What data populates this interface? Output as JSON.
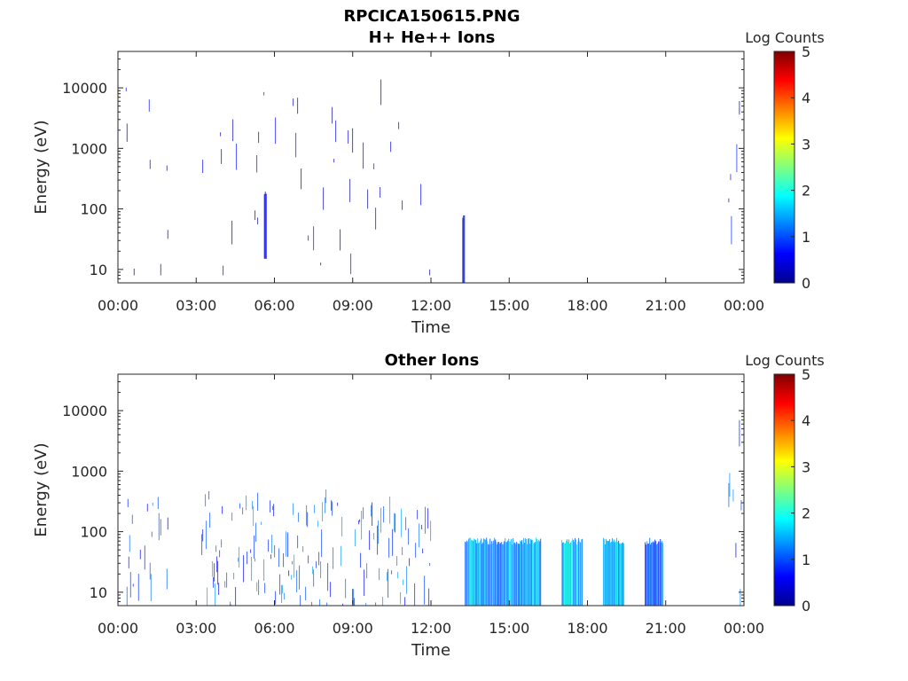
{
  "figure_title": "RPCICA150615.PNG",
  "chart_data": [
    {
      "type": "heatmap",
      "title": "H+ He++ Ions",
      "xlabel": "Time",
      "ylabel": "Energy (eV)",
      "x_tick_labels": [
        "00:00",
        "03:00",
        "06:00",
        "09:00",
        "12:00",
        "15:00",
        "18:00",
        "21:00",
        "00:00"
      ],
      "x_range_hours": [
        0,
        24
      ],
      "y_scale": "log",
      "y_range_eV": [
        6,
        40000
      ],
      "y_tick_values": [
        10,
        100,
        1000,
        10000
      ],
      "y_tick_labels": [
        "10",
        "100",
        "1000",
        "10000"
      ],
      "colorbar": {
        "label": "Log Counts",
        "range": [
          0,
          5
        ],
        "tick_labels": [
          "0",
          "1",
          "2",
          "3",
          "4",
          "5"
        ],
        "colormap": "jet"
      },
      "activity": [
        {
          "t_start_h": 0.3,
          "t_end_h": 1.9,
          "e_low_eV": 8,
          "e_high_eV": 15000,
          "density": 0.15,
          "level": 0.3
        },
        {
          "t_start_h": 3.2,
          "t_end_h": 12.0,
          "e_low_eV": 8,
          "e_high_eV": 15000,
          "density": 0.15,
          "level": 0.3
        },
        {
          "t_start_h": 5.6,
          "t_end_h": 5.7,
          "e_low_eV": 15,
          "e_high_eV": 200,
          "density": 1.0,
          "level": 0.8
        },
        {
          "t_start_h": 13.2,
          "t_end_h": 13.3,
          "e_low_eV": 6,
          "e_high_eV": 80,
          "density": 1.0,
          "level": 0.7
        },
        {
          "t_start_h": 23.4,
          "t_end_h": 23.9,
          "e_low_eV": 10,
          "e_high_eV": 8000,
          "density": 0.25,
          "level": 0.4
        }
      ]
    },
    {
      "type": "heatmap",
      "title": "Other Ions",
      "xlabel": "Time",
      "ylabel": "Energy (eV)",
      "x_tick_labels": [
        "00:00",
        "03:00",
        "06:00",
        "09:00",
        "12:00",
        "15:00",
        "18:00",
        "21:00",
        "00:00"
      ],
      "x_range_hours": [
        0,
        24
      ],
      "y_scale": "log",
      "y_range_eV": [
        6,
        40000
      ],
      "y_tick_values": [
        10,
        100,
        1000,
        10000
      ],
      "y_tick_labels": [
        "10",
        "100",
        "1000",
        "10000"
      ],
      "colorbar": {
        "label": "Log Counts",
        "range": [
          0,
          5
        ],
        "tick_labels": [
          "0",
          "1",
          "2",
          "3",
          "4",
          "5"
        ],
        "colormap": "jet"
      },
      "activity": [
        {
          "t_start_h": 0.3,
          "t_end_h": 1.9,
          "e_low_eV": 6,
          "e_high_eV": 400,
          "density": 0.6,
          "level": 0.9
        },
        {
          "t_start_h": 3.2,
          "t_end_h": 12.0,
          "e_low_eV": 6,
          "e_high_eV": 500,
          "density": 0.6,
          "level": 1.0
        },
        {
          "t_start_h": 13.3,
          "t_end_h": 16.2,
          "e_low_eV": 6,
          "e_high_eV": 80,
          "density": 1.0,
          "level": 1.4
        },
        {
          "t_start_h": 17.0,
          "t_end_h": 17.8,
          "e_low_eV": 6,
          "e_high_eV": 80,
          "density": 1.0,
          "level": 1.6
        },
        {
          "t_start_h": 18.6,
          "t_end_h": 19.4,
          "e_low_eV": 6,
          "e_high_eV": 80,
          "density": 1.0,
          "level": 1.5
        },
        {
          "t_start_h": 20.2,
          "t_end_h": 20.9,
          "e_low_eV": 6,
          "e_high_eV": 80,
          "density": 1.0,
          "level": 1.2
        },
        {
          "t_start_h": 23.3,
          "t_end_h": 23.9,
          "e_low_eV": 6,
          "e_high_eV": 8000,
          "density": 0.5,
          "level": 0.9
        }
      ]
    }
  ]
}
